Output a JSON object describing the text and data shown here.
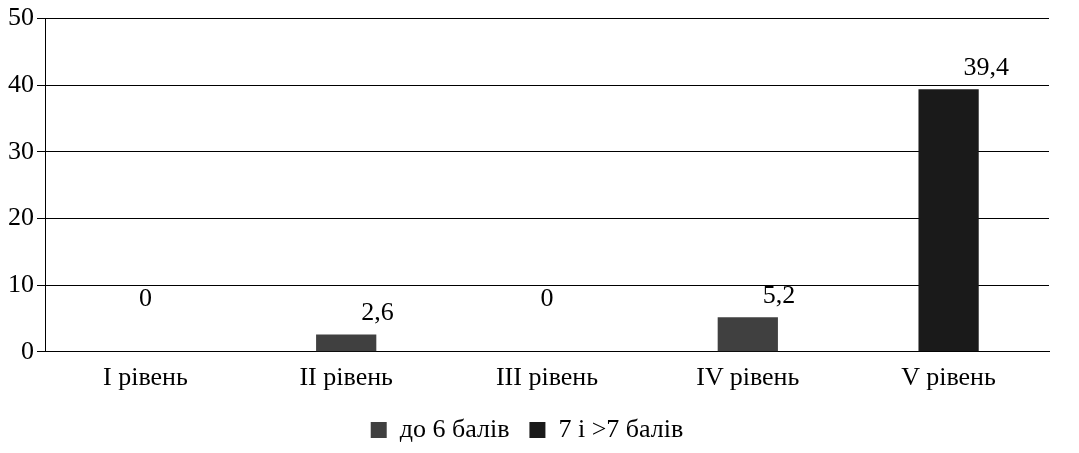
{
  "chart_data": {
    "type": "bar",
    "stacked": true,
    "categories": [
      "I рівень",
      "II рівень",
      "III рівень",
      "IV рівень",
      "V рівень"
    ],
    "series": [
      {
        "name": "до 6 балів",
        "color": "#404040",
        "values": [
          0,
          2.6,
          0,
          5.2,
          null
        ],
        "value_labels": [
          "0",
          "2,6",
          "0",
          "5,2",
          null
        ]
      },
      {
        "name": "7 і >7 балів",
        "color": "#1a1a1a",
        "values": [
          null,
          null,
          null,
          null,
          39.4
        ],
        "value_labels": [
          null,
          null,
          null,
          null,
          "39,4"
        ]
      }
    ],
    "ylim": [
      0,
      50
    ],
    "yticks": [
      0,
      10,
      20,
      30,
      40,
      50
    ],
    "grid": "y",
    "legend": "bottom"
  }
}
